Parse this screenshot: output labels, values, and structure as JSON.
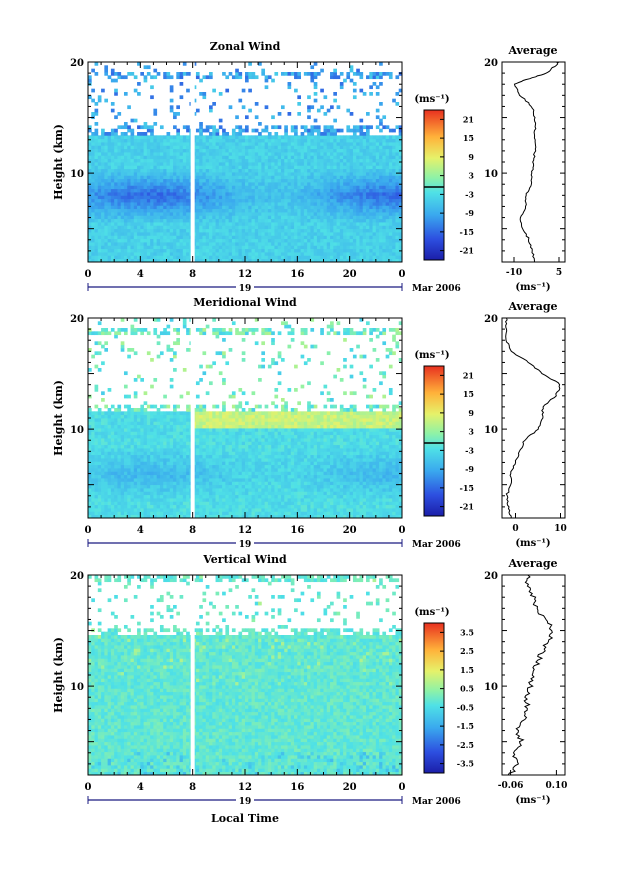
{
  "figure": {
    "xlabel": "Local Time",
    "date_label": "Mar 2006",
    "day_label": "19"
  },
  "chart_data": [
    {
      "type": "heatmap",
      "title": "Zonal Wind",
      "xlabel": "",
      "ylabel": "Height (km)",
      "x_ticks": [
        "0",
        "4",
        "8",
        "12",
        "16",
        "20",
        "0"
      ],
      "y_ticks": [
        "20",
        "10"
      ],
      "x_range": [
        0,
        24
      ],
      "y_range": [
        2,
        20
      ],
      "colorbar": {
        "unit": "(ms⁻¹)",
        "ticks": [
          "21",
          "15",
          "9",
          "3",
          "-3",
          "-9",
          "-15",
          "-21"
        ],
        "range": [
          -24,
          24
        ],
        "contour_at": 0
      },
      "values_note": "",
      "pattern": {
        "base": -4.5,
        "jet_level_km": 8,
        "jet_strength": -9,
        "top_km": 13.5,
        "noisy_above_km": 13.5,
        "noise_top_km": 18.5
      },
      "profile": {
        "title": "Average",
        "xlabel": "(ms⁻¹)",
        "x_ticks": [
          "-10",
          "5"
        ],
        "x_range": [
          -14,
          7
        ],
        "y_ticks": [
          "20",
          "10"
        ],
        "heights": [
          2,
          3,
          4,
          5,
          6,
          7,
          8,
          9,
          10,
          11,
          12,
          13,
          14,
          15,
          16,
          17,
          18,
          18.5,
          19,
          19.5,
          20
        ],
        "values": [
          -3,
          -4,
          -5,
          -7,
          -8,
          -6,
          -6,
          -4,
          -4,
          -3.5,
          -3,
          -3,
          -3,
          -3,
          -4,
          -8,
          -10,
          -5,
          1,
          3,
          5
        ]
      }
    },
    {
      "type": "heatmap",
      "title": "Meridional Wind",
      "xlabel": "",
      "ylabel": "Height (km)",
      "x_ticks": [
        "0",
        "4",
        "8",
        "12",
        "16",
        "20",
        "0"
      ],
      "y_ticks": [
        "20",
        "10"
      ],
      "x_range": [
        0,
        24
      ],
      "y_range": [
        2,
        20
      ],
      "colorbar": {
        "unit": "(ms⁻¹)",
        "ticks": [
          "21",
          "15",
          "9",
          "3",
          "-3",
          "-9",
          "-15",
          "-21"
        ],
        "range": [
          -24,
          24
        ],
        "contour_at": 0
      },
      "pattern": {
        "base": -3,
        "jet_level_km": 6,
        "jet_strength": -4,
        "top_km": 11.5,
        "warm_band_km": [
          10,
          12
        ],
        "warm_strength": 9,
        "noisy_above_km": 11.5,
        "noise_top_km": 18.5
      },
      "profile": {
        "title": "Average",
        "xlabel": "(ms⁻¹)",
        "x_ticks": [
          "0",
          "10"
        ],
        "x_range": [
          -3,
          11
        ],
        "y_ticks": [
          "20",
          "10"
        ],
        "heights": [
          2,
          3,
          4,
          5,
          6,
          7,
          8,
          9,
          10,
          11,
          12,
          13,
          14,
          15,
          16,
          17,
          18,
          19,
          20
        ],
        "values": [
          -1,
          -1.5,
          -2,
          -1,
          -1,
          0,
          1,
          2,
          5,
          6,
          6,
          9,
          10,
          6,
          3,
          -1,
          -2,
          -2,
          -2
        ]
      }
    },
    {
      "type": "heatmap",
      "title": "Vertical Wind",
      "xlabel": "",
      "ylabel": "Height (km)",
      "x_ticks": [
        "0",
        "4",
        "8",
        "12",
        "16",
        "20",
        "0"
      ],
      "y_ticks": [
        "20",
        "10"
      ],
      "x_range": [
        0,
        24
      ],
      "y_range": [
        2,
        20
      ],
      "colorbar": {
        "unit": "(ms⁻¹)",
        "ticks": [
          "3.5",
          "2.5",
          "1.5",
          "0.5",
          "-0.5",
          "-1.5",
          "-2.5",
          "-3.5"
        ],
        "range": [
          -4,
          4
        ],
        "contour_at": null
      },
      "pattern": {
        "base": -0.15,
        "noise": 0.35,
        "top_km": 14.5,
        "noise_top_km": 19.5
      },
      "profile": {
        "title": "Average",
        "xlabel": "(ms⁻¹)",
        "x_ticks": [
          "-0.06",
          "0.10"
        ],
        "x_range": [
          -0.09,
          0.13
        ],
        "y_ticks": [
          "20",
          "10"
        ],
        "heights": [
          2,
          3,
          4,
          5,
          6,
          7,
          8,
          9,
          10,
          11,
          12,
          13,
          14,
          15,
          16,
          17,
          18,
          19,
          20
        ],
        "values": [
          -0.06,
          -0.04,
          -0.05,
          -0.02,
          -0.04,
          -0.01,
          0.0,
          -0.01,
          0.01,
          0.02,
          0.03,
          0.05,
          0.07,
          0.09,
          0.06,
          0.03,
          0.02,
          0.0,
          0.0
        ]
      }
    }
  ]
}
